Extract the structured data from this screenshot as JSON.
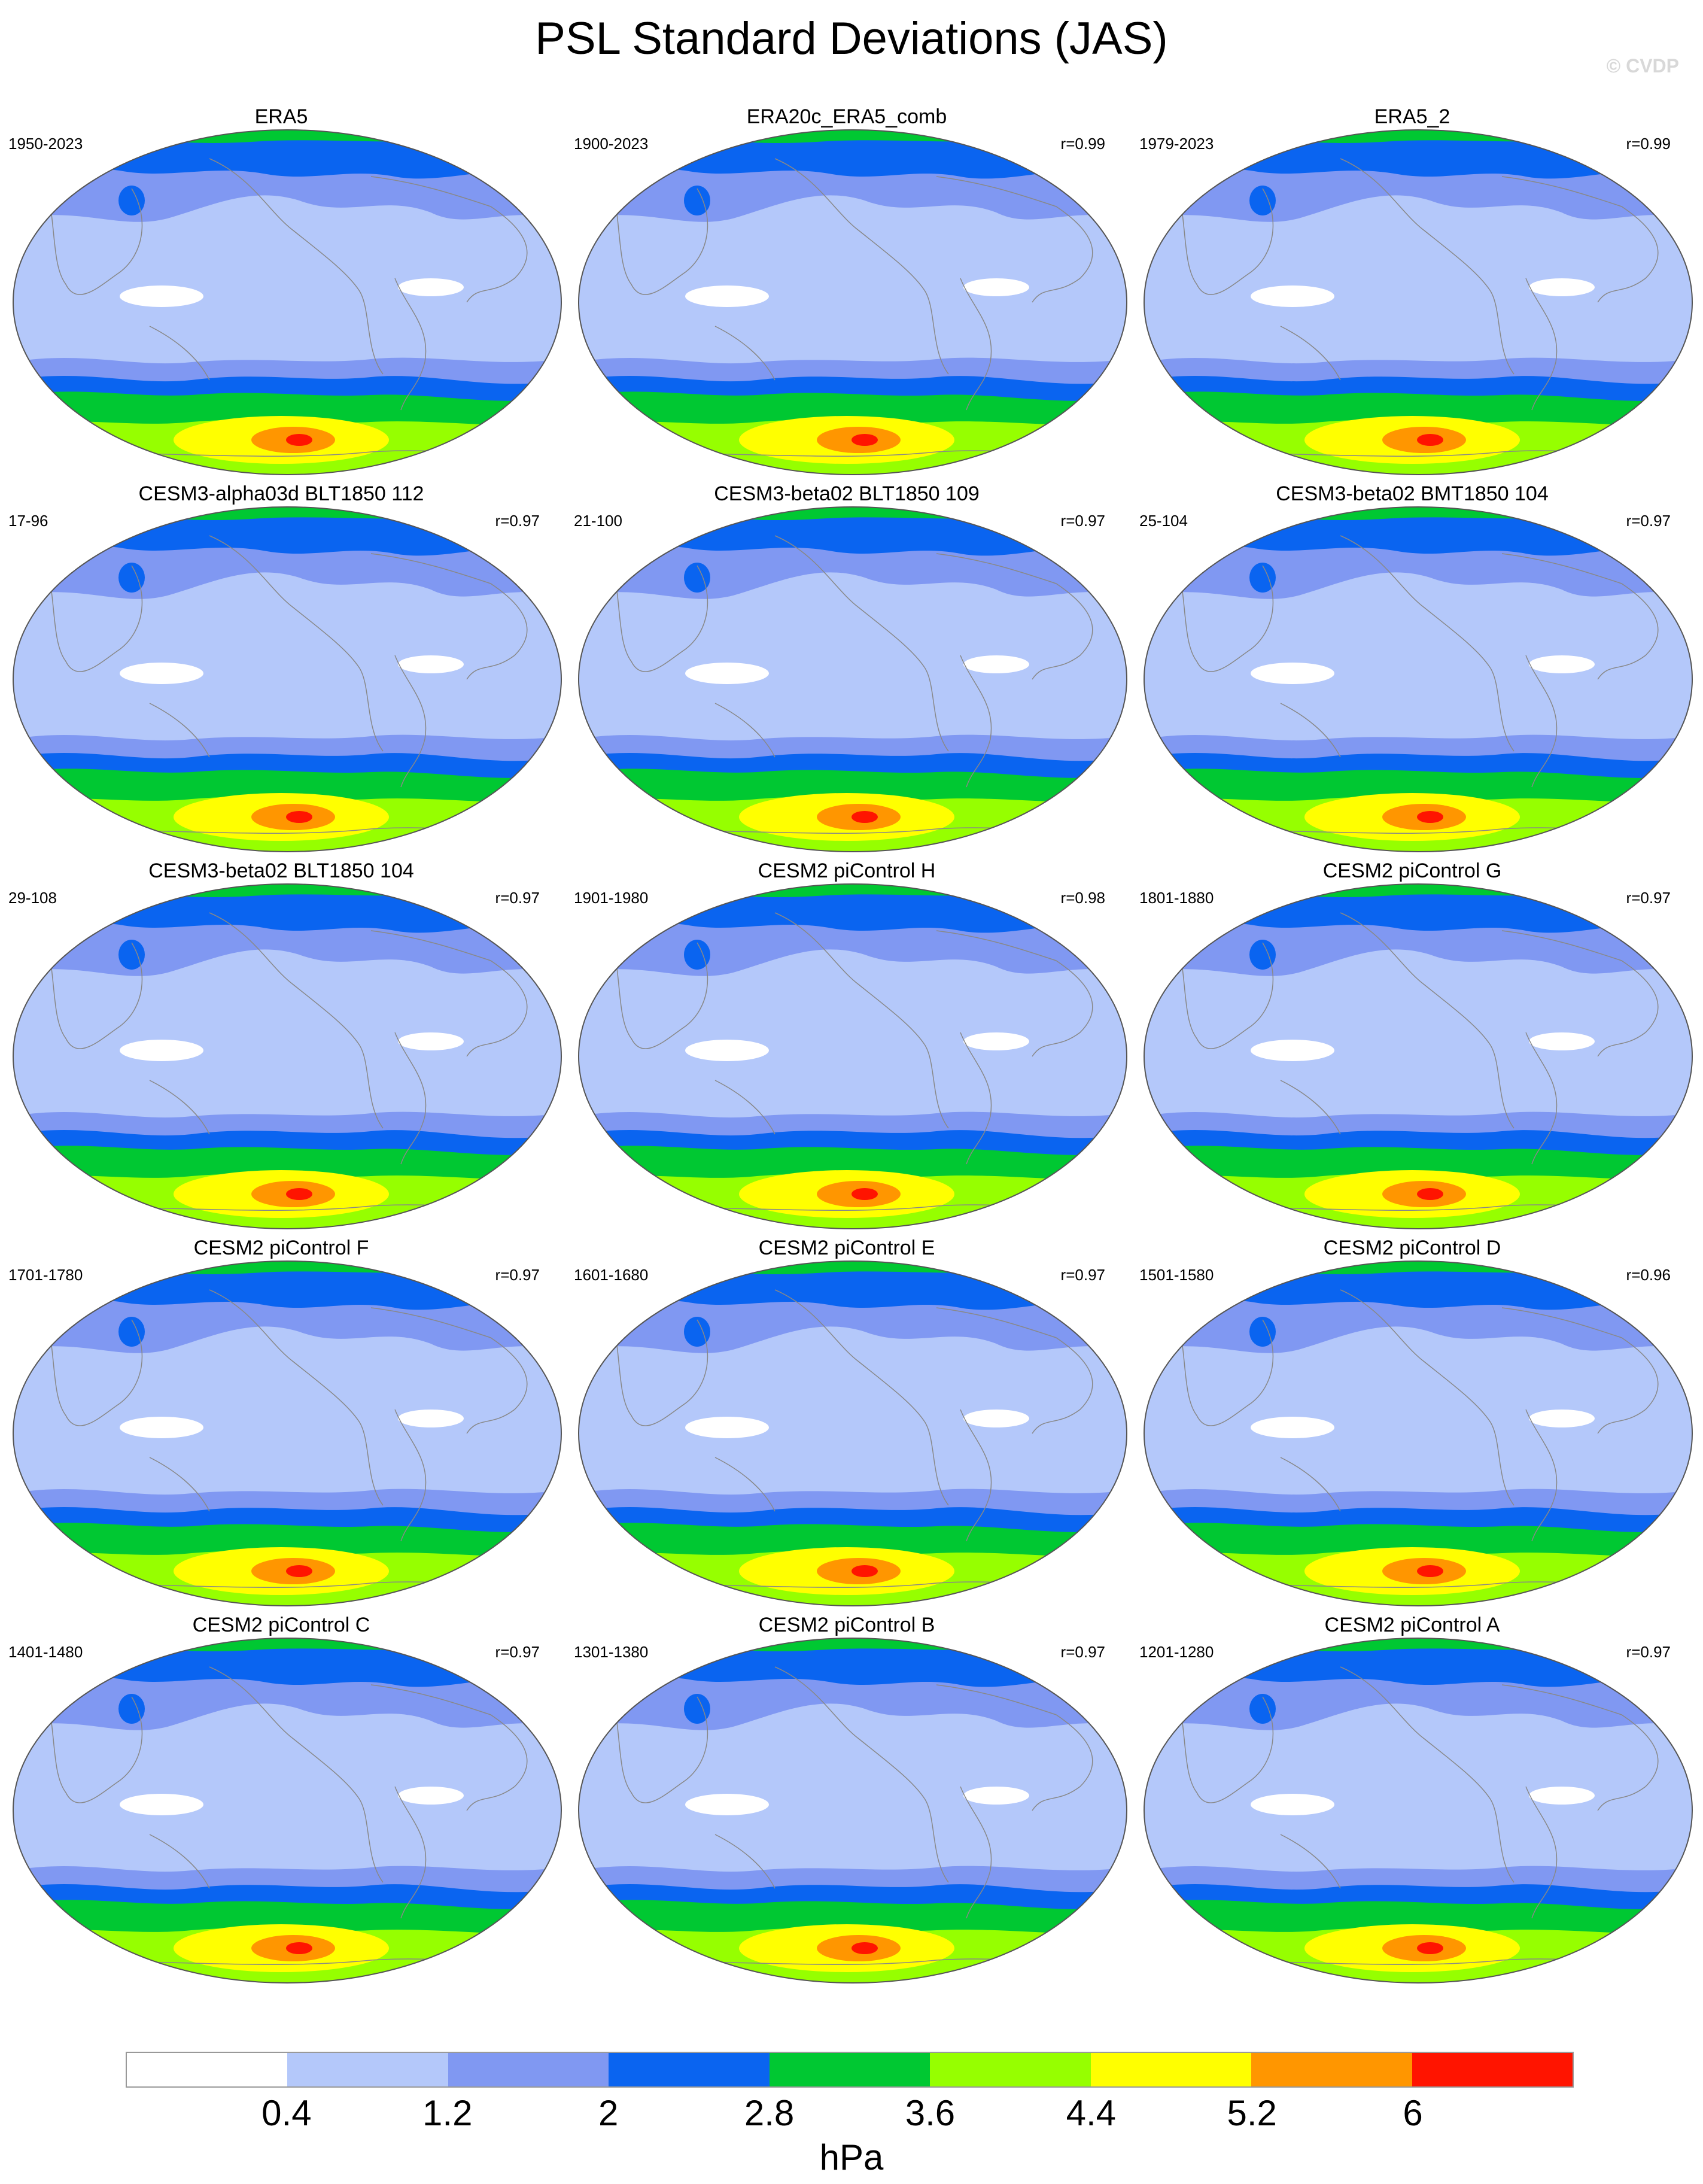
{
  "title": "PSL Standard Deviations (JAS)",
  "watermark": "© CVDP",
  "colors": {
    "levels": [
      "#ffffff",
      "#b4c8fa",
      "#8098f2",
      "#0a64f0",
      "#00c832",
      "#96ff00",
      "#ffff00",
      "#ff9600",
      "#ff1400"
    ],
    "ocean_base": "#b4c8fa",
    "coastline": "#888888"
  },
  "colorbar": {
    "labels": [
      "0.4",
      "1.2",
      "2",
      "2.8",
      "3.6",
      "4.4",
      "5.2",
      "6"
    ],
    "units": "hPa"
  },
  "panels": [
    {
      "title": "ERA5",
      "period": "1950-2023",
      "r": ""
    },
    {
      "title": "ERA20c_ERA5_comb",
      "period": "1900-2023",
      "r": "r=0.99"
    },
    {
      "title": "ERA5_2",
      "period": "1979-2023",
      "r": "r=0.99"
    },
    {
      "title": "CESM3-alpha03d BLT1850 112",
      "period": "17-96",
      "r": "r=0.97"
    },
    {
      "title": "CESM3-beta02 BLT1850 109",
      "period": "21-100",
      "r": "r=0.97"
    },
    {
      "title": "CESM3-beta02 BMT1850 104",
      "period": "25-104",
      "r": "r=0.97"
    },
    {
      "title": "CESM3-beta02 BLT1850 104",
      "period": "29-108",
      "r": "r=0.97"
    },
    {
      "title": "CESM2 piControl H",
      "period": "1901-1980",
      "r": "r=0.98"
    },
    {
      "title": "CESM2 piControl G",
      "period": "1801-1880",
      "r": "r=0.97"
    },
    {
      "title": "CESM2 piControl F",
      "period": "1701-1780",
      "r": "r=0.97"
    },
    {
      "title": "CESM2 piControl E",
      "period": "1601-1680",
      "r": "r=0.97"
    },
    {
      "title": "CESM2 piControl D",
      "period": "1501-1580",
      "r": "r=0.96"
    },
    {
      "title": "CESM2 piControl C",
      "period": "1401-1480",
      "r": "r=0.97"
    },
    {
      "title": "CESM2 piControl B",
      "period": "1301-1380",
      "r": "r=0.97"
    },
    {
      "title": "CESM2 piControl A",
      "period": "1201-1280",
      "r": "r=0.97"
    }
  ]
}
